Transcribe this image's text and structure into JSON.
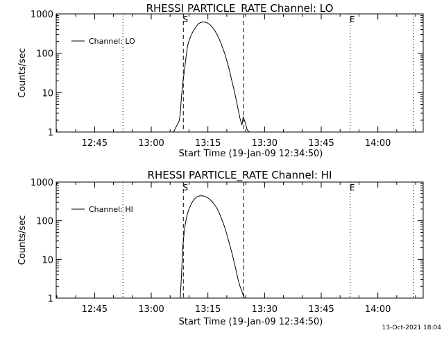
{
  "footer": {
    "date": "13-Oct-2021 18:04"
  },
  "chart_data": [
    {
      "type": "line",
      "title": "RHESSI PARTICLE_RATE Channel: LO",
      "xlabel": "Start Time (19-Jan-09 12:34:50)",
      "ylabel": "Counts/sec",
      "yscale": "log",
      "ylim": [
        1,
        1000
      ],
      "ytick_labels": [
        "1",
        "10",
        "100",
        "1000"
      ],
      "xlim": [
        "12:34:50",
        "14:12:00"
      ],
      "xtick_labels": [
        "12:45",
        "13:00",
        "13:15",
        "13:30",
        "13:45",
        "14:00"
      ],
      "legend": {
        "position": "top-left",
        "entries": [
          "Channel: LO"
        ]
      },
      "markers": [
        {
          "label": "S",
          "time": "13:08:30",
          "style": "dashed"
        },
        {
          "label": "",
          "time": "13:24:30",
          "style": "dashed"
        },
        {
          "label": "E",
          "time": "13:52:40",
          "style": "dotted"
        },
        {
          "label": "",
          "time": "12:52:30",
          "style": "dotted"
        },
        {
          "label": "",
          "time": "14:09:30",
          "style": "dotted"
        }
      ],
      "grid": false,
      "series": [
        {
          "name": "Channel: LO",
          "x": [
            "13:05:40",
            "13:06:00",
            "13:06:40",
            "13:07:00",
            "13:07:20",
            "13:07:40",
            "13:08:00",
            "13:08:20",
            "13:08:40",
            "13:09:00",
            "13:09:20",
            "13:09:40",
            "13:10:00",
            "13:10:30",
            "13:11:00",
            "13:11:30",
            "13:12:00",
            "13:12:30",
            "13:13:00",
            "13:13:30",
            "13:14:00",
            "13:14:30",
            "13:15:00",
            "13:15:30",
            "13:16:00",
            "13:16:30",
            "13:17:00",
            "13:17:30",
            "13:18:00",
            "13:18:30",
            "13:19:00",
            "13:19:30",
            "13:20:00",
            "13:20:30",
            "13:21:00",
            "13:21:30",
            "13:22:00",
            "13:22:30",
            "13:23:00",
            "13:23:30",
            "13:24:00",
            "13:24:20",
            "13:24:40",
            "13:25:00",
            "13:25:20",
            "13:25:40",
            "13:26:00"
          ],
          "y": [
            1.0,
            1.05,
            1.4,
            1.6,
            1.8,
            2.8,
            8,
            17,
            30,
            55,
            100,
            160,
            210,
            280,
            350,
            420,
            490,
            560,
            600,
            620,
            620,
            610,
            580,
            540,
            480,
            420,
            350,
            290,
            230,
            175,
            130,
            95,
            65,
            44,
            28,
            17,
            11,
            6.5,
            3.8,
            2.2,
            1.5,
            2.4,
            2.0,
            1.6,
            1.2,
            1.05,
            1.0
          ]
        }
      ]
    },
    {
      "type": "line",
      "title": "RHESSI PARTICLE_RATE Channel: HI",
      "xlabel": "Start Time (19-Jan-09 12:34:50)",
      "ylabel": "Counts/sec",
      "yscale": "log",
      "ylim": [
        1,
        1000
      ],
      "ytick_labels": [
        "1",
        "10",
        "100",
        "1000"
      ],
      "xlim": [
        "12:34:50",
        "14:12:00"
      ],
      "xtick_labels": [
        "12:45",
        "13:00",
        "13:15",
        "13:30",
        "13:45",
        "14:00"
      ],
      "legend": {
        "position": "top-left",
        "entries": [
          "Channel: HI"
        ]
      },
      "markers": [
        {
          "label": "S",
          "time": "13:08:30",
          "style": "dashed"
        },
        {
          "label": "",
          "time": "13:24:30",
          "style": "dashed"
        },
        {
          "label": "E",
          "time": "13:52:40",
          "style": "dotted"
        },
        {
          "label": "",
          "time": "12:52:30",
          "style": "dotted"
        },
        {
          "label": "",
          "time": "14:09:30",
          "style": "dotted"
        }
      ],
      "grid": false,
      "series": [
        {
          "name": "Channel: HI",
          "x": [
            "13:07:40",
            "13:08:00",
            "13:08:20",
            "13:08:40",
            "13:09:00",
            "13:09:20",
            "13:09:40",
            "13:10:00",
            "13:10:30",
            "13:11:00",
            "13:11:30",
            "13:12:00",
            "13:12:30",
            "13:13:00",
            "13:13:30",
            "13:14:00",
            "13:14:30",
            "13:15:00",
            "13:15:30",
            "13:16:00",
            "13:16:30",
            "13:17:00",
            "13:17:30",
            "13:18:00",
            "13:18:30",
            "13:19:00",
            "13:19:30",
            "13:20:00",
            "13:20:30",
            "13:21:00",
            "13:21:30",
            "13:22:00",
            "13:22:30",
            "13:23:00",
            "13:23:30",
            "13:24:00",
            "13:24:20",
            "13:24:40"
          ],
          "y": [
            1.0,
            4,
            20,
            45,
            80,
            120,
            160,
            200,
            260,
            320,
            370,
            410,
            430,
            440,
            440,
            430,
            410,
            390,
            360,
            320,
            280,
            240,
            200,
            160,
            120,
            90,
            65,
            45,
            30,
            20,
            13,
            8,
            5,
            3,
            2,
            1.5,
            1.2,
            1.0
          ]
        }
      ]
    }
  ]
}
